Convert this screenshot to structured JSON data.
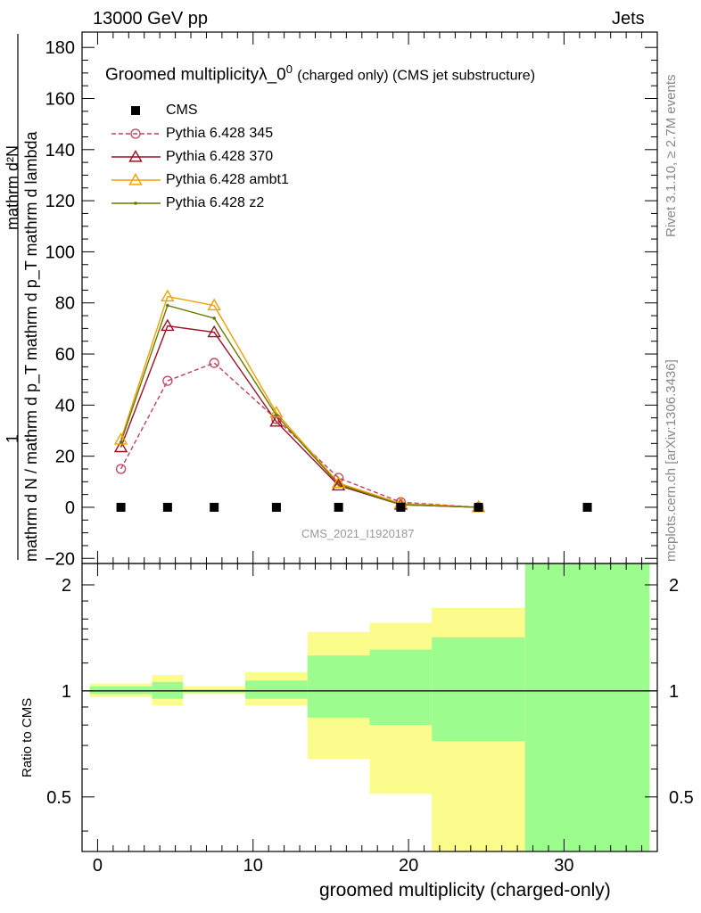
{
  "header": {
    "left": "13000 GeV pp",
    "right": "Jets"
  },
  "side_text": {
    "top": "Rivet 3.1.10, ≥ 2.7M events",
    "bottom": "mcplots.cern.ch [arXiv:1306.3436]"
  },
  "title": {
    "main": "Groomed multiplicityλ_0",
    "sup": "0",
    "rest": "(charged only) (CMS jet substructure)"
  },
  "watermark": "CMS_2021_I1920187",
  "ylabel_top": {
    "numerator": "mathrm d²N",
    "one": "1",
    "denominator": "mathrm d N / mathrm d p_T mathrm d p_T mathrm d lambda"
  },
  "ylabel_ratio": "Ratio to CMS",
  "xlabel": "groomed multiplicity (charged-only)",
  "legend": [
    {
      "name": "CMS",
      "color": "#000000",
      "marker": "square"
    },
    {
      "name": "Pythia 6.428 345",
      "color": "#c0405a",
      "marker": "circle"
    },
    {
      "name": "Pythia 6.428 370",
      "color": "#9b0f22",
      "marker": "triangle"
    },
    {
      "name": "Pythia 6.428 ambt1",
      "color": "#f0a000",
      "marker": "triangle"
    },
    {
      "name": "Pythia 6.428 z2",
      "color": "#667a00",
      "marker": "dot"
    }
  ],
  "chart_data": [
    {
      "type": "line",
      "panel": "main",
      "xlim": [
        -1,
        36
      ],
      "ylim": [
        -22,
        186
      ],
      "yticks": [
        -20,
        0,
        20,
        40,
        60,
        80,
        100,
        120,
        140,
        160,
        180
      ],
      "cms": {
        "x": [
          1.5,
          4.5,
          7.5,
          11.5,
          15.5,
          19.5,
          24.5,
          31.5
        ],
        "y": [
          0,
          0,
          0,
          0,
          0,
          0,
          0,
          0
        ]
      },
      "series": [
        {
          "name": "Pythia 6.428 345",
          "x": [
            1.5,
            4.5,
            7.5,
            11.5,
            15.5,
            19.5,
            24.5
          ],
          "y": [
            15,
            49.5,
            56.5,
            34.5,
            11.5,
            2,
            0
          ]
        },
        {
          "name": "Pythia 6.428 370",
          "x": [
            1.5,
            4.5,
            7.5,
            11.5,
            15.5,
            19.5,
            24.5
          ],
          "y": [
            23.5,
            71,
            68.5,
            33.5,
            8.5,
            1,
            0
          ]
        },
        {
          "name": "Pythia 6.428 ambt1",
          "x": [
            1.5,
            4.5,
            7.5,
            11.5,
            15.5,
            19.5,
            24.5
          ],
          "y": [
            26.5,
            82.5,
            79,
            37,
            9.5,
            1.5,
            0
          ]
        },
        {
          "name": "Pythia 6.428 z2",
          "x": [
            1.5,
            4.5,
            7.5,
            11.5,
            15.5,
            19.5,
            24.5
          ],
          "y": [
            25.5,
            79,
            74,
            36,
            9,
            1,
            0
          ]
        }
      ]
    },
    {
      "type": "area",
      "panel": "ratio",
      "xlim": [
        -1,
        36
      ],
      "ylim": [
        0.35,
        2.3
      ],
      "yticks": [
        0.5,
        1,
        2
      ],
      "xticks": [
        0,
        10,
        20,
        30
      ],
      "bins": [
        {
          "x0": -0.5,
          "x1": 3.5,
          "stat_lo": 0.98,
          "stat_hi": 1.03,
          "tot_lo": 0.96,
          "tot_hi": 1.05
        },
        {
          "x0": 3.5,
          "x1": 5.5,
          "stat_lo": 0.95,
          "stat_hi": 1.06,
          "tot_lo": 0.91,
          "tot_hi": 1.11
        },
        {
          "x0": 5.5,
          "x1": 9.5,
          "stat_lo": 0.99,
          "stat_hi": 1.01,
          "tot_lo": 0.98,
          "tot_hi": 1.03
        },
        {
          "x0": 9.5,
          "x1": 13.5,
          "stat_lo": 0.95,
          "stat_hi": 1.07,
          "tot_lo": 0.91,
          "tot_hi": 1.13
        },
        {
          "x0": 13.5,
          "x1": 17.5,
          "stat_lo": 0.84,
          "stat_hi": 1.26,
          "tot_lo": 0.64,
          "tot_hi": 1.47
        },
        {
          "x0": 17.5,
          "x1": 21.5,
          "stat_lo": 0.8,
          "stat_hi": 1.31,
          "tot_lo": 0.51,
          "tot_hi": 1.56
        },
        {
          "x0": 21.5,
          "x1": 27.5,
          "stat_lo": 0.72,
          "stat_hi": 1.42,
          "tot_lo": 0.35,
          "tot_hi": 1.72
        },
        {
          "x0": 27.5,
          "x1": 35.5,
          "stat_lo": 0.35,
          "stat_hi": 2.3,
          "tot_lo": 0.35,
          "tot_hi": 2.3
        }
      ]
    }
  ],
  "colors": {
    "stat_band": "#9cfc8e",
    "tot_band": "#fcfc8c"
  }
}
